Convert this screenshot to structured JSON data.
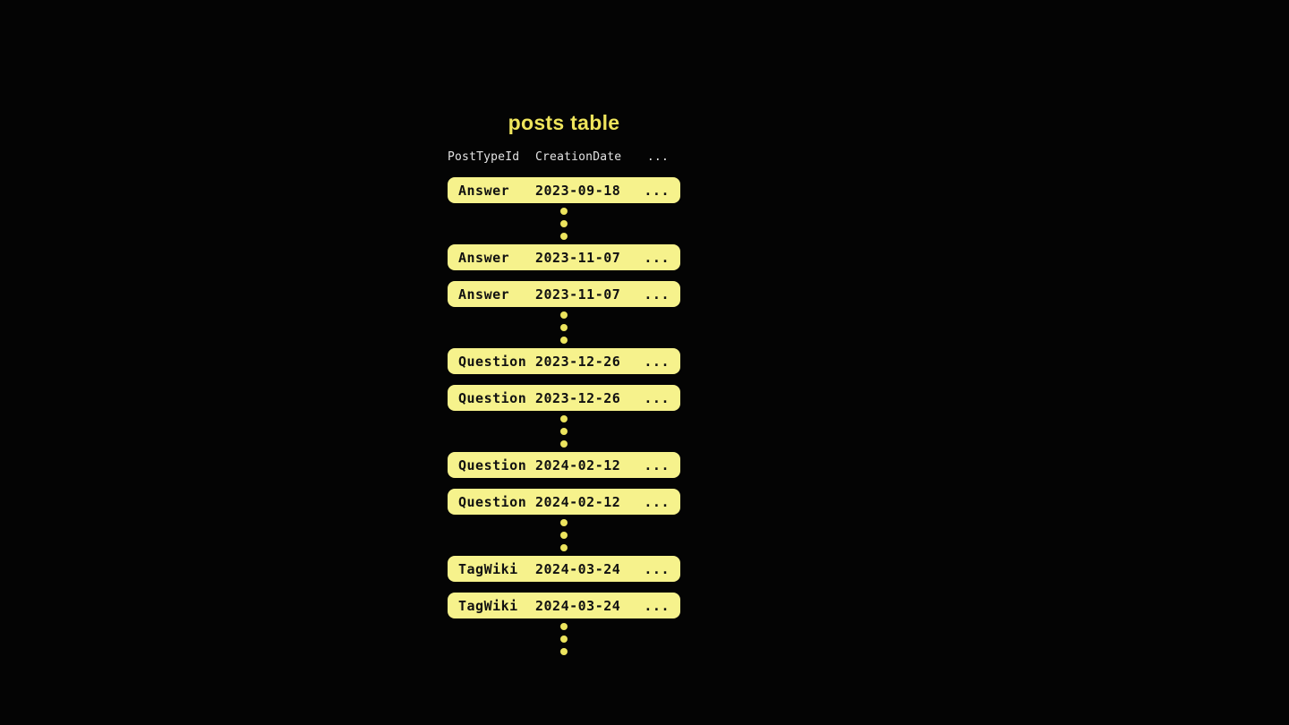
{
  "title": "posts table",
  "colors": {
    "background": "#040404",
    "title": "#efe55c",
    "row_fill": "#f6f28c",
    "row_text": "#111111",
    "header_text": "#e3e3e3",
    "dot": "#ece45e"
  },
  "table": {
    "columns": [
      "PostTypeId",
      "CreationDate",
      "..."
    ],
    "ellipsis_separator": {
      "dot_count": 3
    },
    "groups": [
      {
        "rows": [
          {
            "post_type": "Answer",
            "creation_date": "2023-09-18",
            "more": "..."
          }
        ]
      },
      {
        "rows": [
          {
            "post_type": "Answer",
            "creation_date": "2023-11-07",
            "more": "..."
          },
          {
            "post_type": "Answer",
            "creation_date": "2023-11-07",
            "more": "..."
          }
        ]
      },
      {
        "rows": [
          {
            "post_type": "Question",
            "creation_date": "2023-12-26",
            "more": "..."
          },
          {
            "post_type": "Question",
            "creation_date": "2023-12-26",
            "more": "..."
          }
        ]
      },
      {
        "rows": [
          {
            "post_type": "Question",
            "creation_date": "2024-02-12",
            "more": "..."
          },
          {
            "post_type": "Question",
            "creation_date": "2024-02-12",
            "more": "..."
          }
        ]
      },
      {
        "rows": [
          {
            "post_type": "TagWiki",
            "creation_date": "2024-03-24",
            "more": "..."
          },
          {
            "post_type": "TagWiki",
            "creation_date": "2024-03-24",
            "more": "..."
          }
        ]
      }
    ]
  }
}
